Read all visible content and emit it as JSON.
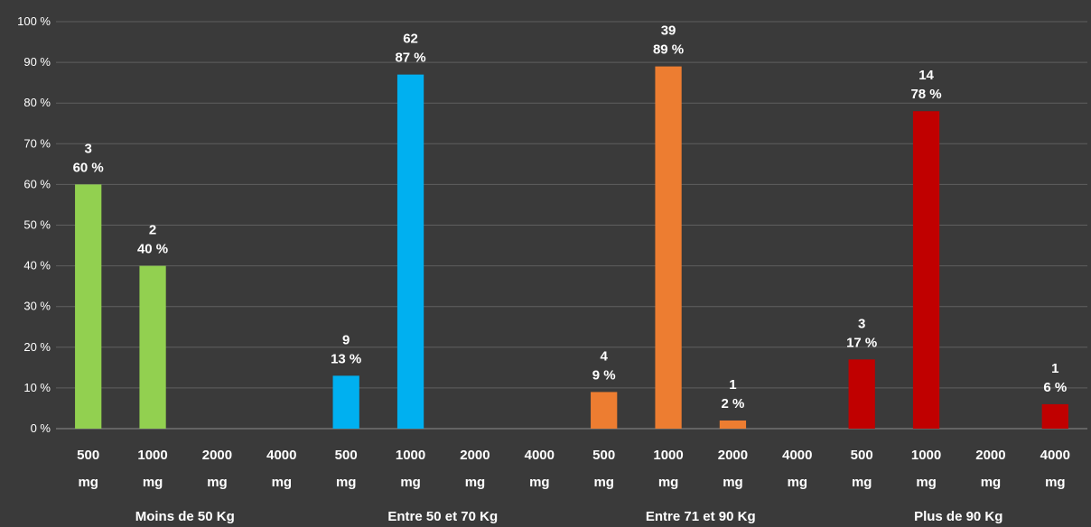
{
  "chart_data": {
    "type": "bar",
    "y_unit": "percent",
    "ylim": [
      0,
      100
    ],
    "y_ticks": [
      "0 %",
      "10 %",
      "20 %",
      "30 %",
      "40 %",
      "50 %",
      "60 %",
      "70 %",
      "80 %",
      "90 %",
      "100 %"
    ],
    "grid": true,
    "legend": "none",
    "groups": [
      {
        "name": "Moins de 50 Kg",
        "color": "#92d050",
        "categories": [
          {
            "dose": "500",
            "unit": "mg",
            "value": 60,
            "count": "3",
            "percent_label": "60 %"
          },
          {
            "dose": "1000",
            "unit": "mg",
            "value": 40,
            "count": "2",
            "percent_label": "40 %"
          },
          {
            "dose": "2000",
            "unit": "mg",
            "value": 0,
            "count": null,
            "percent_label": null
          },
          {
            "dose": "4000",
            "unit": "mg",
            "value": 0,
            "count": null,
            "percent_label": null
          }
        ]
      },
      {
        "name": "Entre 50 et 70 Kg",
        "color": "#00b0f0",
        "categories": [
          {
            "dose": "500",
            "unit": "mg",
            "value": 13,
            "count": "9",
            "percent_label": "13 %"
          },
          {
            "dose": "1000",
            "unit": "mg",
            "value": 87,
            "count": "62",
            "percent_label": "87 %"
          },
          {
            "dose": "2000",
            "unit": "mg",
            "value": 0,
            "count": null,
            "percent_label": null
          },
          {
            "dose": "4000",
            "unit": "mg",
            "value": 0,
            "count": null,
            "percent_label": null
          }
        ]
      },
      {
        "name": "Entre 71 et 90 Kg",
        "color": "#ed7d31",
        "categories": [
          {
            "dose": "500",
            "unit": "mg",
            "value": 9,
            "count": "4",
            "percent_label": "9 %"
          },
          {
            "dose": "1000",
            "unit": "mg",
            "value": 89,
            "count": "39",
            "percent_label": "89 %"
          },
          {
            "dose": "2000",
            "unit": "mg",
            "value": 2,
            "count": "1",
            "percent_label": "2 %"
          },
          {
            "dose": "4000",
            "unit": "mg",
            "value": 0,
            "count": null,
            "percent_label": null
          }
        ]
      },
      {
        "name": "Plus de 90 Kg",
        "color": "#c00000",
        "categories": [
          {
            "dose": "500",
            "unit": "mg",
            "value": 17,
            "count": "3",
            "percent_label": "17 %"
          },
          {
            "dose": "1000",
            "unit": "mg",
            "value": 78,
            "count": "14",
            "percent_label": "78 %"
          },
          {
            "dose": "2000",
            "unit": "mg",
            "value": 0,
            "count": null,
            "percent_label": null
          },
          {
            "dose": "4000",
            "unit": "mg",
            "value": 6,
            "count": "1",
            "percent_label": "6 %"
          }
        ]
      }
    ]
  }
}
